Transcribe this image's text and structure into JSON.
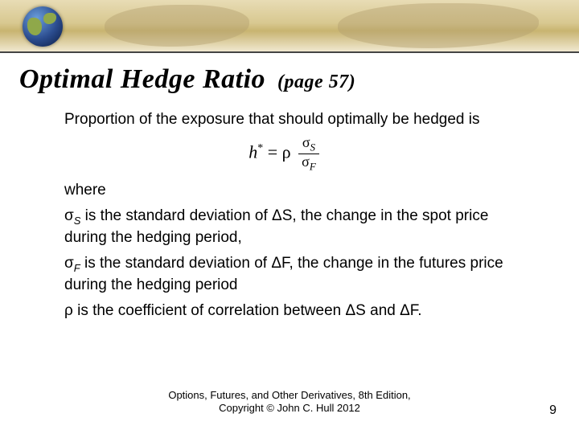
{
  "title": "Optimal Hedge Ratio",
  "title_sub": "(page 57)",
  "intro": "Proportion of the exposure that should optimally be hedged is",
  "where": "where",
  "sigmaS_def": " is the standard deviation of ΔS, the change in the spot price during the hedging period,",
  "sigmaF_def": " is the standard deviation of ΔF, the change in the futures price during the hedging period",
  "rho_def": " is the coefficient of correlation between ΔS and ΔF.",
  "footer1": "Options, Futures, and Other Derivatives, 8th Edition,",
  "footer2": "Copyright © John C. Hull 2012",
  "page_number": "9",
  "symbols": {
    "sigmaS": "σ",
    "sigmaF": "σ",
    "rho": "ρ",
    "h": "h",
    "eq": "="
  }
}
